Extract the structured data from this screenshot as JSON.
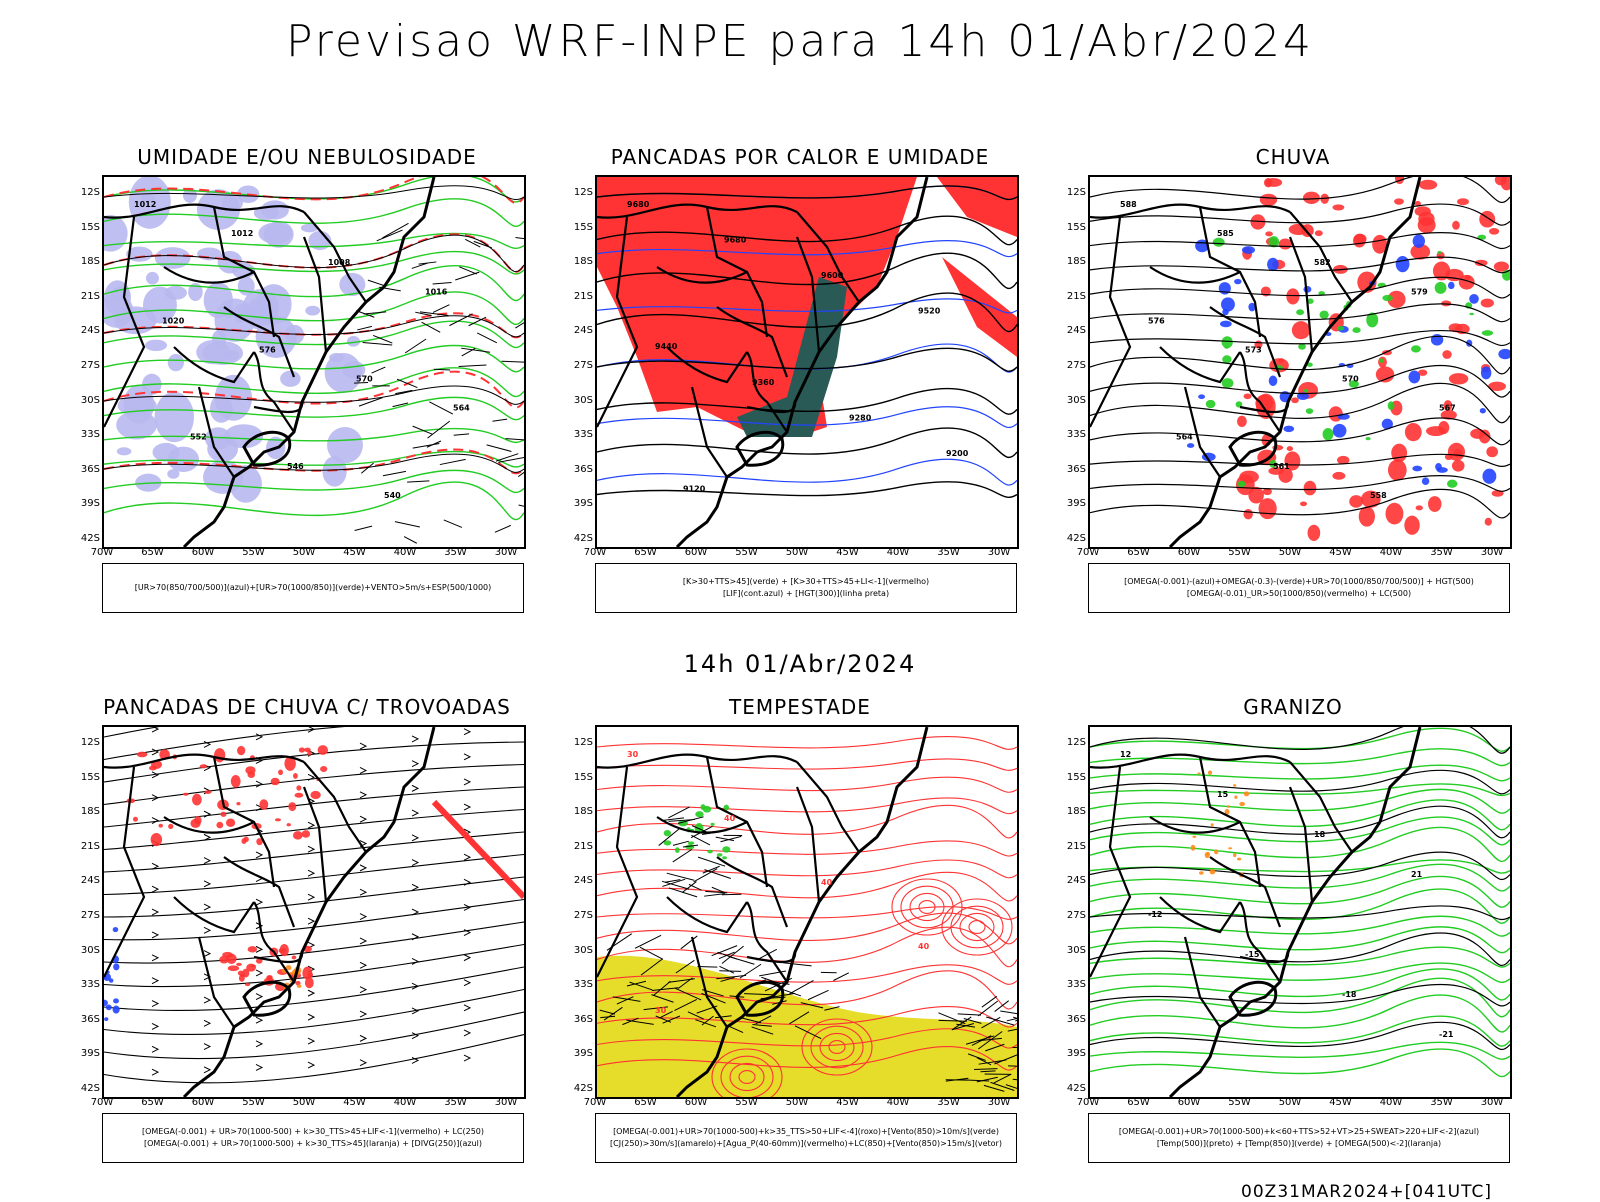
{
  "title": "Previsao WRF-INPE  para 14h 01/Abr/2024",
  "subtitle": "14h 01/Abr/2024",
  "footer": "00Z31MAR2024+[041UTC]",
  "lat_labels": [
    "12S",
    "15S",
    "18S",
    "21S",
    "24S",
    "27S",
    "30S",
    "33S",
    "36S",
    "39S",
    "42S"
  ],
  "lon_labels": [
    "70W",
    "65W",
    "60W",
    "55W",
    "50W",
    "45W",
    "40W",
    "35W",
    "30W"
  ],
  "colors": {
    "blue_cloud": "#b8b8f0",
    "green": "#22cc22",
    "red": "#ff3333",
    "dark_teal": "#2a5a55",
    "yellow": "#e6dc2a",
    "orange": "#ff8a1a",
    "blue": "#2244ff"
  },
  "panels": [
    {
      "title": "UMIDADE E/OU NEBULOSIDADE",
      "legend": [
        "[UR>70(850/700/500)](azul)+[UR>70(1000/850)](verde)+VENTO>5m/s+ESP(500/1000)"
      ],
      "contour_labels": [
        "1012",
        "1012",
        "1008",
        "1016",
        "1020",
        "576",
        "570",
        "564",
        "552",
        "546",
        "540"
      ]
    },
    {
      "title": "PANCADAS POR CALOR E UMIDADE",
      "legend": [
        "[K>30+TTS>45](verde) + [K>30+TTS>45+LI<-1](vermelho)",
        "[LIF](cont.azul) + [HGT(300)](linha preta)"
      ],
      "contour_labels": [
        "9680",
        "9680",
        "9600",
        "9520",
        "9440",
        "9360",
        "9280",
        "9200",
        "9120"
      ]
    },
    {
      "title": "CHUVA",
      "legend": [
        "[OMEGA(-0.001)-(azul)+OMEGA(-0.3)-(verde)+UR>70(1000/850/700/500)] + HGT(500)",
        "[OMEGA(-0.01)_UR>50(1000/850)(vermelho) + LC(500)"
      ],
      "contour_labels": [
        "588",
        "585",
        "582",
        "579",
        "576",
        "573",
        "570",
        "567",
        "564",
        "561",
        "558"
      ]
    },
    {
      "title": "PANCADAS DE CHUVA C/ TROVOADAS",
      "legend": [
        "[OMEGA(-0.001) + UR>70(1000-500) + k>30_TTS>45+LIF<-1](vermelho) + LC(250)",
        "[OMEGA(-0.001) + UR>70(1000-500) + k>30_TTS>45](laranja) + [DIVG(250)](azul)"
      ],
      "contour_labels": []
    },
    {
      "title": "TEMPESTADE",
      "legend": [
        "[OMEGA(-0.001)+UR>70(1000-500)+k>35_TTS>50+LIF<-4](roxo)+[Vento(850)>10m/s](verde)",
        "[CJ(250)>30m/s](amarelo)+[Agua_P(40-60mm)](vermelho)+LC(850)+[Vento(850)>15m/s](vetor)"
      ],
      "contour_labels": [
        "30",
        "40",
        "40",
        "40",
        "30"
      ]
    },
    {
      "title": "GRANIZO",
      "legend": [
        "[OMEGA(-0.001)+UR>70(1000-500)+k<60+TTS>52+VT>25+SWEAT>220+LIF<-2](azul)",
        "[Temp(500)](preto) + [Temp(850)](verde) + [OMEGA(500)<-2](laranja)"
      ],
      "contour_labels": [
        "12",
        "15",
        "18",
        "21",
        "-12",
        "-15",
        "-18",
        "-21"
      ]
    }
  ]
}
